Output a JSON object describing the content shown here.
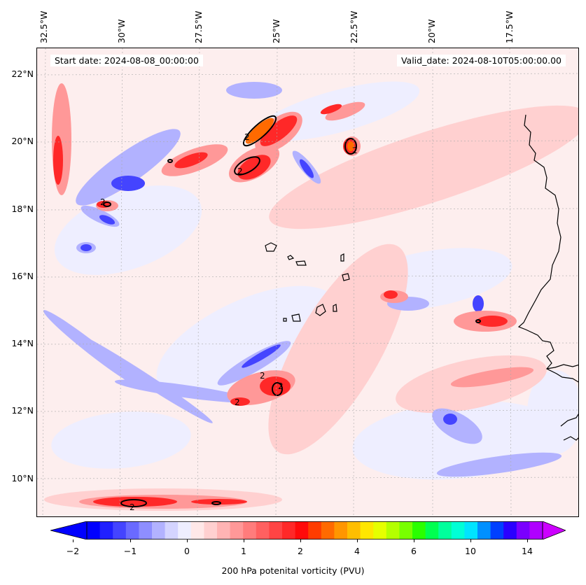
{
  "map": {
    "start_date": "Start date: 2024-08-08_00:00:00",
    "valid_date": "Valid_date: 2024-08-10T05:00:00.00",
    "lon_labels": [
      "32.5°W",
      "30°W",
      "27.5°W",
      "25°W",
      "22.5°W",
      "20°W",
      "17.5°W"
    ],
    "lat_labels": [
      "22°N",
      "20°N",
      "18°N",
      "16°N",
      "14°N",
      "12°N",
      "10°N"
    ],
    "contour_label": "2",
    "extent": {
      "lon_min": -32.6,
      "lon_max": -15.5,
      "lat_min": 8.9,
      "lat_max": 22.8
    }
  },
  "colorbar": {
    "label": "200 hPa potenital vorticity (PVU)",
    "ticks": [
      "−2",
      "−1",
      "0",
      "1",
      "2",
      "4",
      "6",
      "10",
      "14"
    ],
    "colors": [
      "#0000ff",
      "#2020ff",
      "#4444ff",
      "#6a6aff",
      "#8e8eff",
      "#b2b2ff",
      "#d4d4ff",
      "#eeeeff",
      "#ffe8e8",
      "#ffd0d0",
      "#ffb4b4",
      "#ff9898",
      "#ff7c7c",
      "#ff6060",
      "#ff4444",
      "#ff2828",
      "#ff0a0a",
      "#ff3c00",
      "#ff6a00",
      "#ff9600",
      "#ffbe00",
      "#ffe600",
      "#e6ff00",
      "#b4ff00",
      "#78ff00",
      "#2aff00",
      "#00ff50",
      "#00ff9c",
      "#00ffd6",
      "#00e4ff",
      "#0090ff",
      "#0040ff",
      "#2a00ff",
      "#7a00ff",
      "#b000ff"
    ],
    "extend_low_color": "#0000ff",
    "extend_high_color": "#cc00ff"
  },
  "colors": {
    "light_blue": "#eeeeff",
    "mid_blue": "#b2b2ff",
    "blue": "#4444ff",
    "light_red": "#ffd0d0",
    "mid_red": "#ff9898",
    "red": "#ff2828",
    "orange": "#ff6a00",
    "coast": "#000000"
  }
}
